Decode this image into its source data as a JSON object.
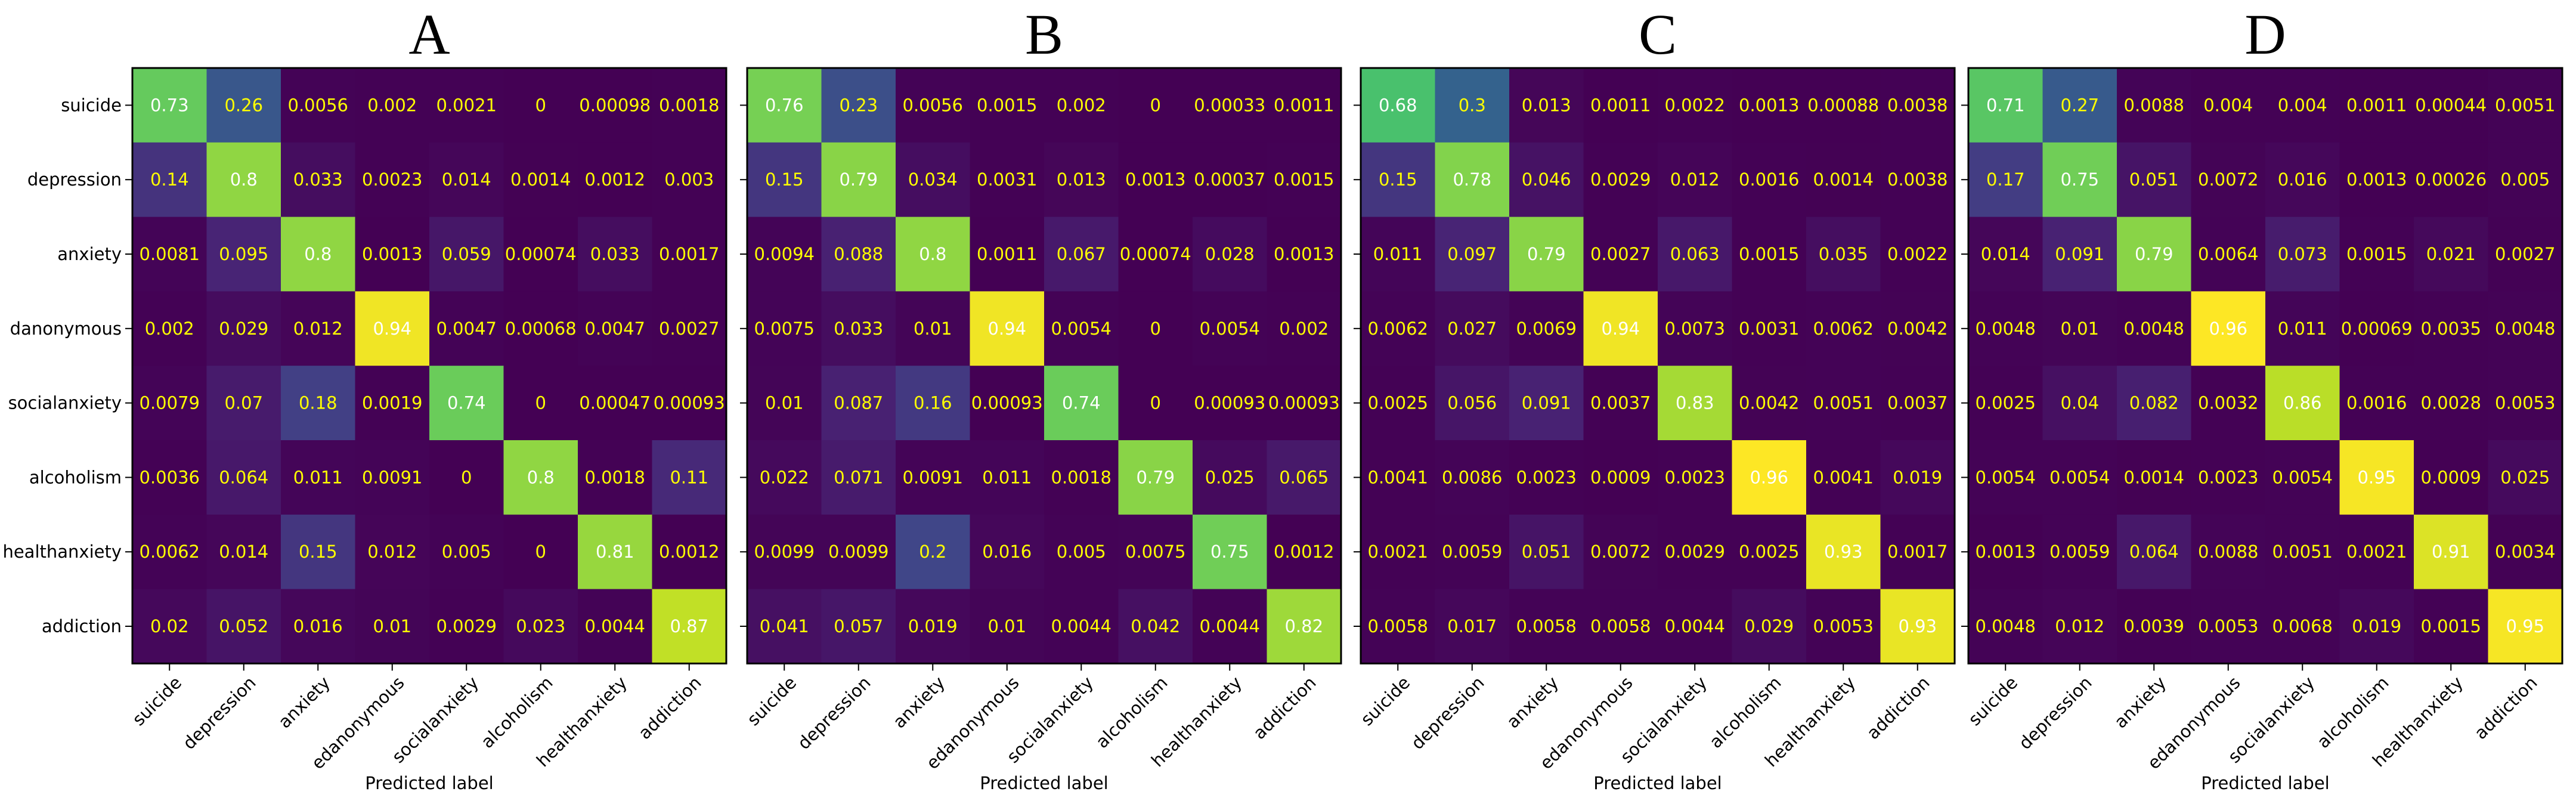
{
  "chart_data": [
    {
      "type": "heatmap",
      "title": "A",
      "xlabel": "Predicted label",
      "ylabel": "",
      "x_tick_labels": [
        "suicide",
        "depression",
        "anxiety",
        "edanonymous",
        "socialanxiety",
        "alcoholism",
        "healthanxiety",
        "addiction"
      ],
      "y_tick_labels": [
        "suicide",
        "depression",
        "anxiety",
        "danonymous",
        "socialanxiety",
        "alcoholism",
        "healthanxiety",
        "addiction"
      ],
      "values": [
        [
          "0.73",
          "0.26",
          "0.0056",
          "0.002",
          "0.0021",
          "0",
          "0.00098",
          "0.0018"
        ],
        [
          "0.14",
          "0.8",
          "0.033",
          "0.0023",
          "0.014",
          "0.0014",
          "0.0012",
          "0.003"
        ],
        [
          "0.0081",
          "0.095",
          "0.8",
          "0.0013",
          "0.059",
          "0.00074",
          "0.033",
          "0.0017"
        ],
        [
          "0.002",
          "0.029",
          "0.012",
          "0.94",
          "0.0047",
          "0.00068",
          "0.0047",
          "0.0027"
        ],
        [
          "0.0079",
          "0.07",
          "0.18",
          "0.0019",
          "0.74",
          "0",
          "0.00047",
          "0.00093"
        ],
        [
          "0.0036",
          "0.064",
          "0.011",
          "0.0091",
          "0",
          "0.8",
          "0.0018",
          "0.11"
        ],
        [
          "0.0062",
          "0.014",
          "0.15",
          "0.012",
          "0.005",
          "0",
          "0.81",
          "0.0012"
        ],
        [
          "0.02",
          "0.052",
          "0.016",
          "0.01",
          "0.0029",
          "0.023",
          "0.0044",
          "0.87"
        ]
      ]
    },
    {
      "type": "heatmap",
      "title": "B",
      "xlabel": "Predicted label",
      "ylabel": "",
      "x_tick_labels": [
        "suicide",
        "depression",
        "anxiety",
        "edanonymous",
        "socialanxiety",
        "alcoholism",
        "healthanxiety",
        "addiction"
      ],
      "y_tick_labels": [],
      "values": [
        [
          "0.76",
          "0.23",
          "0.0056",
          "0.0015",
          "0.002",
          "0",
          "0.00033",
          "0.0011"
        ],
        [
          "0.15",
          "0.79",
          "0.034",
          "0.0031",
          "0.013",
          "0.0013",
          "0.00037",
          "0.0015"
        ],
        [
          "0.0094",
          "0.088",
          "0.8",
          "0.0011",
          "0.067",
          "0.00074",
          "0.028",
          "0.0013"
        ],
        [
          "0.0075",
          "0.033",
          "0.01",
          "0.94",
          "0.0054",
          "0",
          "0.0054",
          "0.002"
        ],
        [
          "0.01",
          "0.087",
          "0.16",
          "0.00093",
          "0.74",
          "0",
          "0.00093",
          "0.00093"
        ],
        [
          "0.022",
          "0.071",
          "0.0091",
          "0.011",
          "0.0018",
          "0.79",
          "0.025",
          "0.065"
        ],
        [
          "0.0099",
          "0.0099",
          "0.2",
          "0.016",
          "0.005",
          "0.0075",
          "0.75",
          "0.0012"
        ],
        [
          "0.041",
          "0.057",
          "0.019",
          "0.01",
          "0.0044",
          "0.042",
          "0.0044",
          "0.82"
        ]
      ]
    },
    {
      "type": "heatmap",
      "title": "C",
      "xlabel": "Predicted label",
      "ylabel": "",
      "x_tick_labels": [
        "suicide",
        "depression",
        "anxiety",
        "edanonymous",
        "socialanxiety",
        "alcoholism",
        "healthanxiety",
        "addiction"
      ],
      "y_tick_labels": [],
      "values": [
        [
          "0.68",
          "0.3",
          "0.013",
          "0.0011",
          "0.0022",
          "0.0013",
          "0.00088",
          "0.0038"
        ],
        [
          "0.15",
          "0.78",
          "0.046",
          "0.0029",
          "0.012",
          "0.0016",
          "0.0014",
          "0.0038"
        ],
        [
          "0.011",
          "0.097",
          "0.79",
          "0.0027",
          "0.063",
          "0.0015",
          "0.035",
          "0.0022"
        ],
        [
          "0.0062",
          "0.027",
          "0.0069",
          "0.94",
          "0.0073",
          "0.0031",
          "0.0062",
          "0.0042"
        ],
        [
          "0.0025",
          "0.056",
          "0.091",
          "0.0037",
          "0.83",
          "0.0042",
          "0.0051",
          "0.0037"
        ],
        [
          "0.0041",
          "0.0086",
          "0.0023",
          "0.0009",
          "0.0023",
          "0.96",
          "0.0041",
          "0.019"
        ],
        [
          "0.0021",
          "0.0059",
          "0.051",
          "0.0072",
          "0.0029",
          "0.0025",
          "0.93",
          "0.0017"
        ],
        [
          "0.0058",
          "0.017",
          "0.0058",
          "0.0058",
          "0.0044",
          "0.029",
          "0.0053",
          "0.93"
        ]
      ]
    },
    {
      "type": "heatmap",
      "title": "D",
      "xlabel": "Predicted label",
      "ylabel": "",
      "x_tick_labels": [
        "suicide",
        "depression",
        "anxiety",
        "edanonymous",
        "socialanxiety",
        "alcoholism",
        "healthanxiety",
        "addiction"
      ],
      "y_tick_labels": [],
      "values": [
        [
          "0.71",
          "0.27",
          "0.0088",
          "0.004",
          "0.004",
          "0.0011",
          "0.00044",
          "0.0051"
        ],
        [
          "0.17",
          "0.75",
          "0.051",
          "0.0072",
          "0.016",
          "0.0013",
          "0.00026",
          "0.005"
        ],
        [
          "0.014",
          "0.091",
          "0.79",
          "0.0064",
          "0.073",
          "0.0015",
          "0.021",
          "0.0027"
        ],
        [
          "0.0048",
          "0.01",
          "0.0048",
          "0.96",
          "0.011",
          "0.00069",
          "0.0035",
          "0.0048"
        ],
        [
          "0.0025",
          "0.04",
          "0.082",
          "0.0032",
          "0.86",
          "0.0016",
          "0.0028",
          "0.0053"
        ],
        [
          "0.0054",
          "0.0054",
          "0.0014",
          "0.0023",
          "0.0054",
          "0.95",
          "0.0009",
          "0.025"
        ],
        [
          "0.0013",
          "0.0059",
          "0.064",
          "0.0088",
          "0.0051",
          "0.0021",
          "0.91",
          "0.0034"
        ],
        [
          "0.0048",
          "0.012",
          "0.0039",
          "0.0053",
          "0.0068",
          "0.019",
          "0.0015",
          "0.95"
        ]
      ]
    }
  ],
  "colormap": "viridis",
  "value_range": [
    0,
    0.96
  ],
  "text_color_light": "#ffff00",
  "text_color_dark": "#ffffff"
}
